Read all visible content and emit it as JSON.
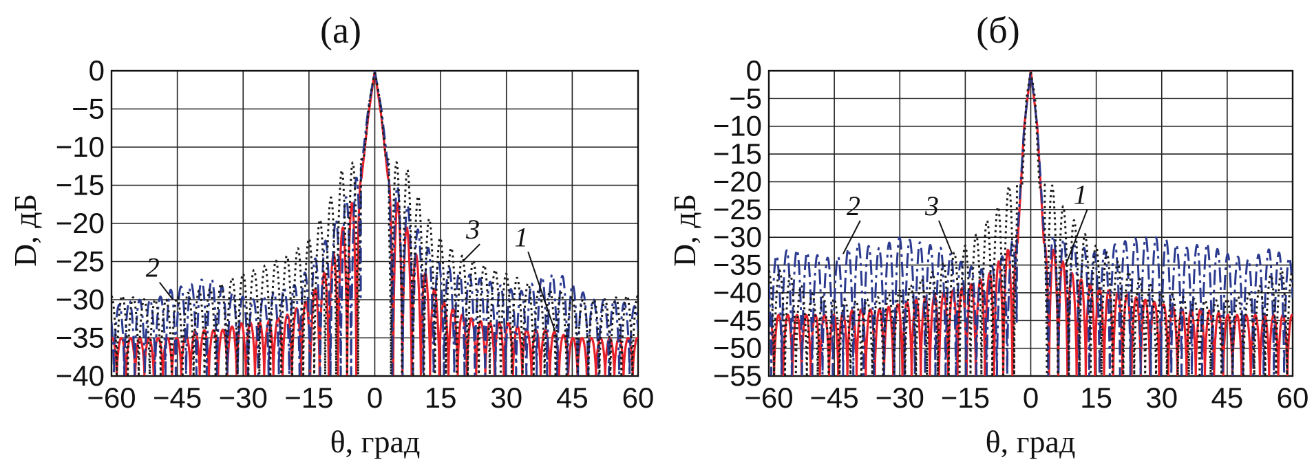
{
  "chart_data": [
    {
      "type": "line",
      "title": "(а)",
      "xlabel": "θ, град",
      "ylabel": "D, дБ",
      "xlim": [
        -60,
        60
      ],
      "ylim": [
        -40,
        0
      ],
      "xticks": [
        -60,
        -45,
        -30,
        -15,
        0,
        15,
        30,
        45,
        60
      ],
      "yticks": [
        0,
        -5,
        -10,
        -15,
        -20,
        -25,
        -30,
        -35,
        -40
      ],
      "xtick_labels": [
        "−60",
        "−45",
        "−30",
        "−15",
        "0",
        "15",
        "30",
        "45",
        "60"
      ],
      "ytick_labels": [
        "0",
        "−5",
        "−10",
        "−15",
        "−20",
        "−25",
        "−30",
        "−35",
        "−40"
      ],
      "grid": true,
      "curve_labels": [
        {
          "text": "1",
          "x": 34,
          "y": -23,
          "to_x": 41,
          "to_y": -34
        },
        {
          "text": "2",
          "x": -50,
          "y": -27,
          "to_x": -46,
          "to_y": -30
        },
        {
          "text": "3",
          "x": 23,
          "y": -22,
          "to_x": 20,
          "to_y": -25
        }
      ],
      "series": [
        {
          "color": "#e8202a",
          "style": "solid",
          "x": [
            -60,
            -55,
            -50,
            -45,
            -40,
            -35,
            -30,
            -25,
            -20,
            -15,
            -10,
            -7,
            -5,
            -3,
            -1.5,
            0,
            1.5,
            3,
            5,
            7,
            10,
            15,
            20,
            25,
            30,
            35,
            40,
            45,
            50,
            55,
            60
          ],
          "y": [
            -35,
            -35,
            -35,
            -35,
            -34,
            -34,
            -33,
            -33,
            -32,
            -30,
            -25,
            -20,
            -17,
            -14,
            -6,
            0,
            -6,
            -14,
            -17,
            -20,
            -25,
            -30,
            -32,
            -33,
            -33,
            -34,
            -34,
            -35,
            -35,
            -35,
            -35
          ]
        },
        {
          "color": "#2b3a8f",
          "style": "dashdot",
          "x": [
            -60,
            -55,
            -50,
            -46,
            -42,
            -38,
            -33,
            -28,
            -23,
            -18,
            -14,
            -10,
            -7,
            -5,
            -3,
            -1.5,
            0,
            1.5,
            3,
            5,
            7,
            10,
            14,
            18,
            23,
            28,
            33,
            38,
            42,
            46,
            50,
            55,
            60
          ],
          "y": [
            -31,
            -30,
            -30,
            -28.5,
            -28,
            -27,
            -29,
            -30,
            -29,
            -28,
            -25,
            -21,
            -17,
            -15,
            -12.5,
            -5,
            0,
            -5,
            -12.5,
            -15,
            -17,
            -21,
            -25,
            -26,
            -27,
            -28,
            -29,
            -27,
            -26.5,
            -28.5,
            -30,
            -30,
            -31
          ]
        },
        {
          "color": "#1a1a1a",
          "style": "dotted",
          "x": [
            -57,
            -52,
            -47,
            -42,
            -37,
            -32,
            -27,
            -23,
            -19,
            -15,
            -11,
            -7.5,
            -5,
            -2.5,
            -1.2,
            0,
            1.2,
            2.5,
            5,
            7.5,
            11,
            15,
            19,
            23,
            27,
            32,
            37,
            42,
            47,
            52,
            57
          ],
          "y": [
            -29.5,
            -30,
            -30,
            -29,
            -28.5,
            -27,
            -26,
            -25,
            -24,
            -22,
            -18,
            -13,
            -12,
            -11.5,
            -4,
            0,
            -4,
            -11.5,
            -12,
            -13,
            -18,
            -22,
            -24,
            -25,
            -26,
            -27,
            -28.5,
            -29,
            -30,
            -30,
            -29.5
          ]
        }
      ]
    },
    {
      "type": "line",
      "title": "(б)",
      "xlabel": "θ, град",
      "ylabel": "D, дБ",
      "xlim": [
        -60,
        60
      ],
      "ylim": [
        -55,
        0
      ],
      "xticks": [
        -60,
        -45,
        -30,
        -15,
        0,
        15,
        30,
        45,
        60
      ],
      "yticks": [
        0,
        -5,
        -10,
        -15,
        -20,
        -25,
        -30,
        -35,
        -40,
        -45,
        -50,
        -55
      ],
      "xtick_labels": [
        "−60",
        "−45",
        "−30",
        "−15",
        "0",
        "15",
        "30",
        "45",
        "60"
      ],
      "ytick_labels": [
        "0",
        "−5",
        "−10",
        "−15",
        "−20",
        "−25",
        "−30",
        "−35",
        "−40",
        "−45",
        "−50",
        "−55"
      ],
      "grid": true,
      "curve_labels": [
        {
          "text": "1",
          "x": 12,
          "y": -24,
          "to_x": 8,
          "to_y": -35
        },
        {
          "text": "2",
          "x": -40,
          "y": -26,
          "to_x": -43,
          "to_y": -33
        },
        {
          "text": "3",
          "x": -22,
          "y": -26,
          "to_x": -18,
          "to_y": -33
        }
      ],
      "series": [
        {
          "color": "#e8202a",
          "style": "solid",
          "x": [
            -60,
            -55,
            -50,
            -45,
            -40,
            -35,
            -30,
            -25,
            -20,
            -15,
            -10,
            -7,
            -5,
            -3,
            -1.5,
            0,
            1.5,
            3,
            5,
            7,
            10,
            15,
            20,
            25,
            30,
            35,
            40,
            45,
            50,
            55,
            60
          ],
          "y": [
            -44,
            -44,
            -44,
            -44,
            -43,
            -43,
            -42,
            -41,
            -40,
            -39,
            -37,
            -34,
            -32,
            -31,
            -10,
            0,
            -10,
            -31,
            -32,
            -34,
            -37,
            -39,
            -40,
            -41,
            -42,
            -43,
            -43,
            -44,
            -44,
            -44,
            -44
          ]
        },
        {
          "color": "#2b3a8f",
          "style": "dashdot",
          "x": [
            -60,
            -55,
            -50,
            -45,
            -40,
            -35,
            -30,
            -25,
            -20,
            -15,
            -10,
            -6,
            -3,
            -1.5,
            0,
            1.5,
            3,
            6,
            10,
            15,
            20,
            25,
            30,
            35,
            40,
            45,
            50,
            55,
            60
          ],
          "y": [
            -34,
            -32,
            -33,
            -34,
            -31,
            -32,
            -30,
            -31,
            -32,
            -35,
            -36,
            -33,
            -29,
            -10,
            0,
            -10,
            -29,
            -30,
            -31,
            -33,
            -31,
            -30,
            -30,
            -32,
            -31,
            -33,
            -34,
            -32,
            -34
          ]
        },
        {
          "color": "#1a1a1a",
          "style": "dotted",
          "x": [
            -56,
            -51,
            -46,
            -41,
            -36,
            -31,
            -26,
            -22,
            -18,
            -14,
            -10,
            -7,
            -4.5,
            -2,
            -1,
            0,
            1,
            2,
            4.5,
            7,
            10,
            14,
            18,
            22,
            26,
            31,
            36,
            41,
            46,
            51,
            56
          ],
          "y": [
            -36,
            -40,
            -41,
            -41.5,
            -41,
            -40,
            -38,
            -36,
            -33,
            -31,
            -27,
            -24,
            -20,
            -21,
            -5,
            0,
            -5,
            -21,
            -20,
            -24,
            -27,
            -31,
            -33,
            -36,
            -38,
            -40,
            -41,
            -41.5,
            -41,
            -40,
            -36
          ]
        }
      ]
    }
  ]
}
